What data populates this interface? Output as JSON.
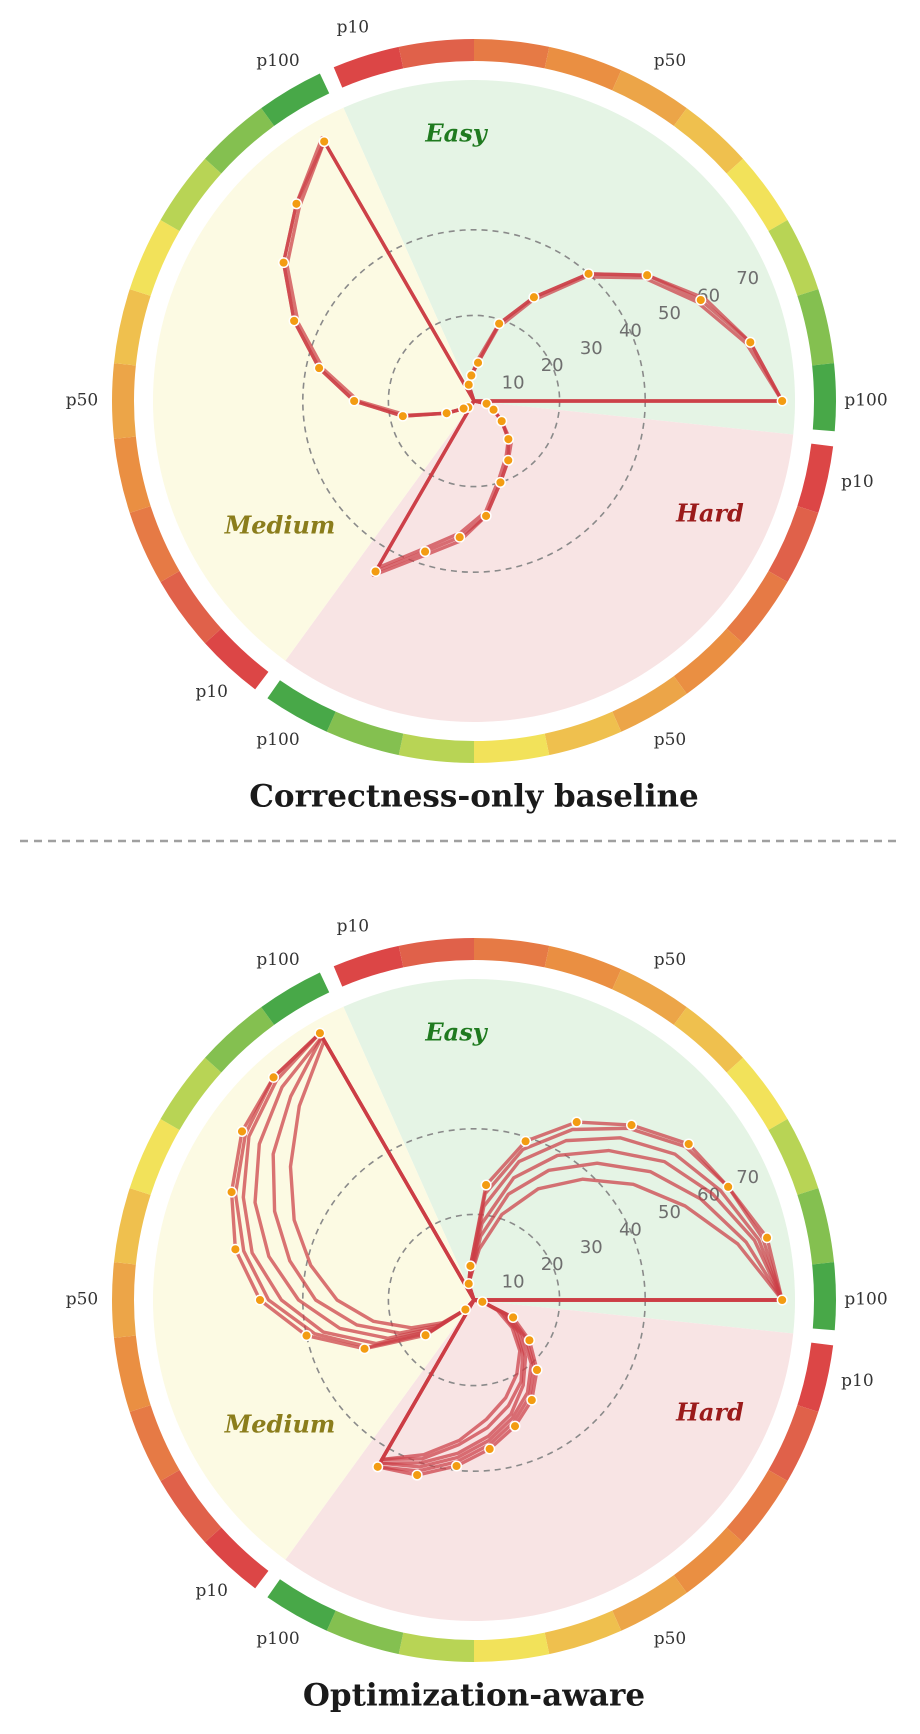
{
  "chart_data": [
    {
      "type": "polar",
      "title": "Correctness-only baseline",
      "categories": [
        "p10",
        null,
        null,
        null,
        "p50",
        null,
        null,
        null,
        null,
        "p100",
        "p10",
        null,
        null,
        null,
        "p50",
        null,
        null,
        null,
        null,
        "p100",
        "p10",
        null,
        null,
        null,
        "p50",
        null,
        null,
        null,
        null,
        "p100"
      ],
      "sectors": [
        {
          "name": "Easy",
          "color": "#e5f4e5",
          "label_color": "#1f7a1f"
        },
        {
          "name": "Hard",
          "color": "#f8e4e4",
          "label_color": "#9b1b1b"
        },
        {
          "name": "Medium",
          "color": "#fcfae3",
          "label_color": "#8b7d1c"
        }
      ],
      "ring_colors": [
        "#dc4646",
        "#e0614a",
        "#e67a45",
        "#ea8f42",
        "#eca548",
        "#efc04e",
        "#f2e25a",
        "#b8d455",
        "#84c050",
        "#48a848"
      ],
      "ylim": [
        0,
        75
      ],
      "yticks": [
        10,
        20,
        30,
        40,
        50,
        60,
        70
      ],
      "grid": [
        20,
        40
      ],
      "series": [
        {
          "color": "#cc3d45",
          "markers": true,
          "values": [
            4,
            6,
            9,
            19,
            28,
            40,
            50,
            58,
            66,
            72,
            3,
            5,
            8,
            12,
            16,
            20,
            27,
            32,
            37,
            46,
            2,
            3,
            7,
            17,
            28,
            37,
            46,
            55,
            62,
            70
          ]
        },
        {
          "color": "#cc3d45",
          "values": [
            4,
            6,
            9,
            18,
            27,
            39,
            49,
            57,
            65,
            72,
            3,
            5,
            8,
            12,
            15,
            19,
            26,
            31,
            36,
            45,
            2,
            3,
            7,
            16,
            27,
            36,
            45,
            54,
            61,
            70
          ]
        },
        {
          "color": "#cc3d45",
          "values": [
            4,
            6,
            10,
            19,
            28,
            40,
            50,
            59,
            66,
            72,
            3,
            5,
            8,
            13,
            16,
            20,
            27,
            33,
            38,
            47,
            2,
            3,
            7,
            17,
            28,
            37,
            46,
            55,
            62,
            71
          ]
        }
      ]
    },
    {
      "type": "polar",
      "title": "Optimization-aware",
      "categories": [
        "p10",
        null,
        null,
        null,
        "p50",
        null,
        null,
        null,
        null,
        "p100",
        "p10",
        null,
        null,
        null,
        "p50",
        null,
        null,
        null,
        null,
        "p100",
        "p10",
        null,
        null,
        null,
        "p50",
        null,
        null,
        null,
        null,
        "p100"
      ],
      "sectors": [
        {
          "name": "Easy",
          "color": "#e5f4e5",
          "label_color": "#1f7a1f"
        },
        {
          "name": "Hard",
          "color": "#f8e4e4",
          "label_color": "#9b1b1b"
        },
        {
          "name": "Medium",
          "color": "#fcfae3",
          "label_color": "#8b7d1c"
        }
      ],
      "ring_colors": [
        "#dc4646",
        "#e0614a",
        "#e67a45",
        "#ea8f42",
        "#eca548",
        "#efc04e",
        "#f2e25a",
        "#b8d455",
        "#84c050",
        "#48a848"
      ],
      "ylim": [
        0,
        75
      ],
      "yticks": [
        10,
        20,
        30,
        40,
        50,
        60,
        70
      ],
      "grid": [
        20,
        40
      ],
      "series": [
        {
          "color": "#cc3d45",
          "markers": true,
          "values": [
            4,
            8,
            27,
            39,
            48,
            55,
            62,
            65,
            70,
            72,
            2,
            10,
            16,
            22,
            27,
            31,
            35,
            39,
            43,
            45,
            3,
            14,
            28,
            40,
            50,
            57,
            62,
            67,
            70,
            72
          ]
        },
        {
          "color": "#cc3d45",
          "values": [
            4,
            8,
            25,
            37,
            46,
            54,
            61,
            65,
            69,
            72,
            2,
            9,
            15,
            21,
            26,
            30,
            34,
            38,
            42,
            45,
            3,
            13,
            27,
            38,
            48,
            55,
            61,
            66,
            70,
            72
          ]
        },
        {
          "color": "#cc3d45",
          "values": [
            4,
            7,
            22,
            34,
            43,
            51,
            58,
            63,
            68,
            72,
            2,
            8,
            14,
            20,
            25,
            29,
            33,
            37,
            41,
            44,
            3,
            12,
            25,
            36,
            45,
            53,
            59,
            65,
            69,
            72
          ]
        },
        {
          "color": "#cc3d45",
          "values": [
            4,
            7,
            18,
            30,
            39,
            47,
            55,
            61,
            67,
            72,
            2,
            8,
            13,
            18,
            23,
            28,
            32,
            36,
            40,
            44,
            3,
            11,
            22,
            32,
            41,
            49,
            56,
            62,
            67,
            71
          ]
        },
        {
          "color": "#cc3d45",
          "values": [
            4,
            6,
            15,
            26,
            35,
            43,
            51,
            58,
            65,
            72,
            2,
            7,
            12,
            17,
            22,
            26,
            30,
            34,
            39,
            43,
            3,
            10,
            19,
            28,
            37,
            44,
            51,
            58,
            64,
            71
          ]
        },
        {
          "color": "#cc3d45",
          "values": [
            4,
            6,
            12,
            21,
            30,
            38,
            46,
            54,
            63,
            72,
            2,
            6,
            11,
            16,
            20,
            24,
            28,
            33,
            38,
            43,
            3,
            9,
            16,
            24,
            32,
            39,
            46,
            53,
            61,
            70
          ]
        }
      ]
    }
  ]
}
